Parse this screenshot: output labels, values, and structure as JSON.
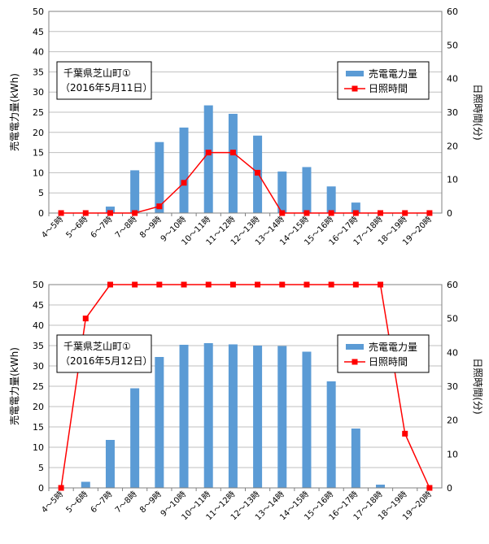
{
  "chart_data": [
    {
      "type": "bar",
      "annotation": [
        "千葉県芝山町①",
        "（2016年5月11日）"
      ],
      "categories": [
        "4～5時",
        "5～6時",
        "6～7時",
        "7～8時",
        "8～9時",
        "9～10時",
        "10～11時",
        "11～12時",
        "12～13時",
        "13～14時",
        "14～15時",
        "15～16時",
        "16～17時",
        "17～18時",
        "18～19時",
        "19～20時"
      ],
      "ylabel": "売電電力量(kWh)",
      "y2label": "日照時間(分)",
      "ylim": [
        0,
        50
      ],
      "y2lim": [
        0,
        60
      ],
      "yticks": [
        "0",
        "5",
        "10",
        "15",
        "20",
        "25",
        "30",
        "35",
        "40",
        "45",
        "50"
      ],
      "y2ticks": [
        "0",
        "10",
        "20",
        "30",
        "40",
        "50",
        "60"
      ],
      "grid": true,
      "legend_position": "top-right",
      "series": [
        {
          "name": "売電電力量",
          "type": "bar",
          "axis": "left",
          "color": "#5b9bd5",
          "values": [
            0,
            0,
            1.6,
            10.6,
            17.6,
            21.2,
            26.7,
            24.6,
            19.2,
            10.3,
            11.4,
            6.6,
            2.6,
            0,
            0,
            0
          ]
        },
        {
          "name": "日照時間",
          "type": "line",
          "axis": "right",
          "color": "#ff0000",
          "values": [
            0,
            0,
            0,
            0,
            2,
            9,
            18,
            18,
            12,
            0,
            0,
            0,
            0,
            0,
            0,
            0
          ]
        }
      ]
    },
    {
      "type": "bar",
      "annotation": [
        "千葉県芝山町①",
        "（2016年5月12日）"
      ],
      "categories": [
        "4～5時",
        "5～6時",
        "6～7時",
        "7～8時",
        "8～9時",
        "9～10時",
        "10～11時",
        "11～12時",
        "12～13時",
        "13～14時",
        "14～15時",
        "15～16時",
        "16～17時",
        "17～18時",
        "18～19時",
        "19～20時"
      ],
      "ylabel": "売電電力量(kWh)",
      "y2label": "日照時間(分)",
      "ylim": [
        0,
        50
      ],
      "y2lim": [
        0,
        60
      ],
      "yticks": [
        "0",
        "5",
        "10",
        "15",
        "20",
        "25",
        "30",
        "35",
        "40",
        "45",
        "50"
      ],
      "y2ticks": [
        "0",
        "10",
        "20",
        "30",
        "40",
        "50",
        "60"
      ],
      "grid": true,
      "legend_position": "top-right",
      "series": [
        {
          "name": "売電電力量",
          "type": "bar",
          "axis": "left",
          "color": "#5b9bd5",
          "values": [
            0,
            1.5,
            11.8,
            24.5,
            32.2,
            35.2,
            35.6,
            35.3,
            35,
            34.9,
            33.5,
            26.2,
            14.6,
            0.8,
            0,
            0
          ]
        },
        {
          "name": "日照時間",
          "type": "line",
          "axis": "right",
          "color": "#ff0000",
          "values": [
            0,
            50,
            60,
            60,
            60,
            60,
            60,
            60,
            60,
            60,
            60,
            60,
            60,
            60,
            16,
            0
          ]
        }
      ]
    }
  ]
}
